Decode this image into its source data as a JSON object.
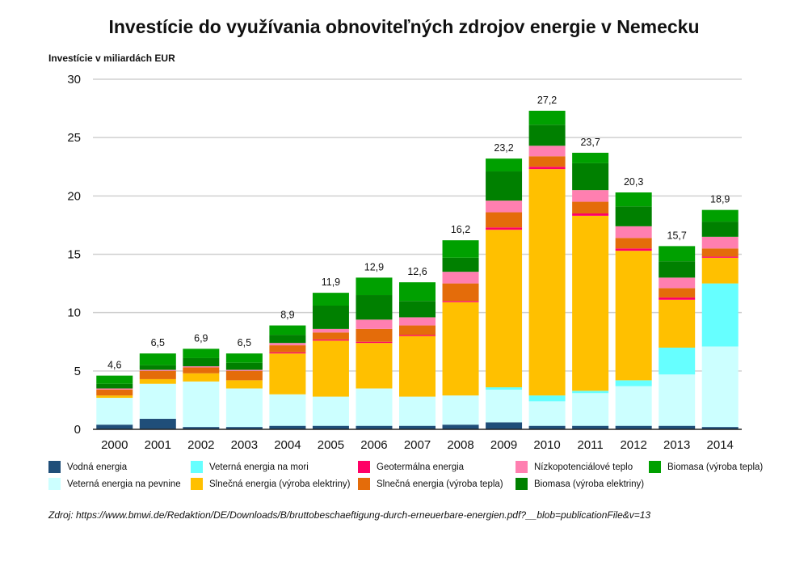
{
  "chart_data": {
    "type": "bar",
    "stacked": true,
    "title": "Investície do využívania obnoviteľných zdrojov energie v Nemecku",
    "ylabel": "Investície v miliardách EUR",
    "xlabel": "",
    "ylim": [
      0,
      30
    ],
    "yticks": [
      0,
      5,
      10,
      15,
      20,
      25,
      30
    ],
    "grid": true,
    "categories": [
      "2000",
      "2001",
      "2002",
      "2003",
      "2004",
      "2005",
      "2006",
      "2007",
      "2008",
      "2009",
      "2010",
      "2011",
      "2012",
      "2013",
      "2014"
    ],
    "totals": [
      "4,6",
      "6,5",
      "6,9",
      "6,5",
      "8,9",
      "11,9",
      "12,9",
      "12,6",
      "16,2",
      "23,2",
      "27,2",
      "23,7",
      "20,3",
      "15,7",
      "18,9"
    ],
    "series": [
      {
        "name": "Vodná energia",
        "color": "#1f4e79",
        "values": [
          0.4,
          0.9,
          0.2,
          0.2,
          0.3,
          0.3,
          0.3,
          0.3,
          0.4,
          0.6,
          0.3,
          0.3,
          0.3,
          0.3,
          0.2
        ]
      },
      {
        "name": "Veterná energia na pevnine",
        "color": "#ccffff",
        "values": [
          2.3,
          3.0,
          3.9,
          3.3,
          2.7,
          2.5,
          3.2,
          2.5,
          2.5,
          2.8,
          2.1,
          2.8,
          3.4,
          4.4,
          6.9
        ]
      },
      {
        "name": "Veterná energia na mori",
        "color": "#66ffff",
        "values": [
          0.0,
          0.0,
          0.0,
          0.0,
          0.0,
          0.0,
          0.0,
          0.0,
          0.0,
          0.2,
          0.5,
          0.2,
          0.5,
          2.3,
          5.4
        ]
      },
      {
        "name": "Slnečná energia (výroba elektriny)",
        "color": "#ffc000",
        "values": [
          0.2,
          0.4,
          0.7,
          0.7,
          3.5,
          4.8,
          3.9,
          5.2,
          8.0,
          13.5,
          19.4,
          15.0,
          11.1,
          4.1,
          2.2
        ]
      },
      {
        "name": "Geotermálna energia",
        "color": "#ff0066",
        "values": [
          0.0,
          0.0,
          0.0,
          0.0,
          0.1,
          0.1,
          0.1,
          0.1,
          0.1,
          0.2,
          0.2,
          0.2,
          0.2,
          0.2,
          0.1
        ]
      },
      {
        "name": "Slnečná energia (výroba tepla)",
        "color": "#e46c0a",
        "values": [
          0.5,
          0.7,
          0.5,
          0.8,
          0.6,
          0.6,
          1.1,
          0.8,
          1.5,
          1.3,
          0.9,
          1.0,
          0.9,
          0.8,
          0.7
        ]
      },
      {
        "name": "Nízkopotenciálové teplo",
        "color": "#ff7fb0",
        "values": [
          0.1,
          0.1,
          0.1,
          0.1,
          0.2,
          0.3,
          0.8,
          0.7,
          1.0,
          1.0,
          0.9,
          1.0,
          1.0,
          0.9,
          1.0
        ]
      },
      {
        "name": "Biomasa (výroba elektriny)",
        "color": "#008000",
        "values": [
          0.4,
          0.4,
          0.7,
          0.6,
          0.7,
          2.0,
          2.1,
          1.4,
          1.2,
          2.5,
          1.8,
          2.3,
          1.7,
          1.4,
          1.3
        ]
      },
      {
        "name": "Biomasa (výroba tepla)",
        "color": "#00a000",
        "values": [
          0.7,
          1.0,
          0.8,
          0.8,
          0.8,
          1.1,
          1.5,
          1.6,
          1.5,
          1.1,
          1.2,
          0.9,
          1.2,
          1.3,
          1.0
        ]
      }
    ],
    "legend_order": [
      "Vodná energia",
      "Veterná energia na mori",
      "Geotermálna energia",
      "Nízkopotenciálové teplo",
      "Biomasa (výroba tepla)",
      "Veterná energia na pevnine",
      "Slnečná energia (výroba elektriny)",
      "Slnečná energia (výroba tepla)",
      "Biomasa (výroba elektriny)"
    ],
    "source": "Zdroj: https://www.bmwi.de/Redaktion/DE/Downloads/B/bruttobeschaeftigung-durch-erneuerbare-energien.pdf?__blob=publicationFile&v=13"
  }
}
